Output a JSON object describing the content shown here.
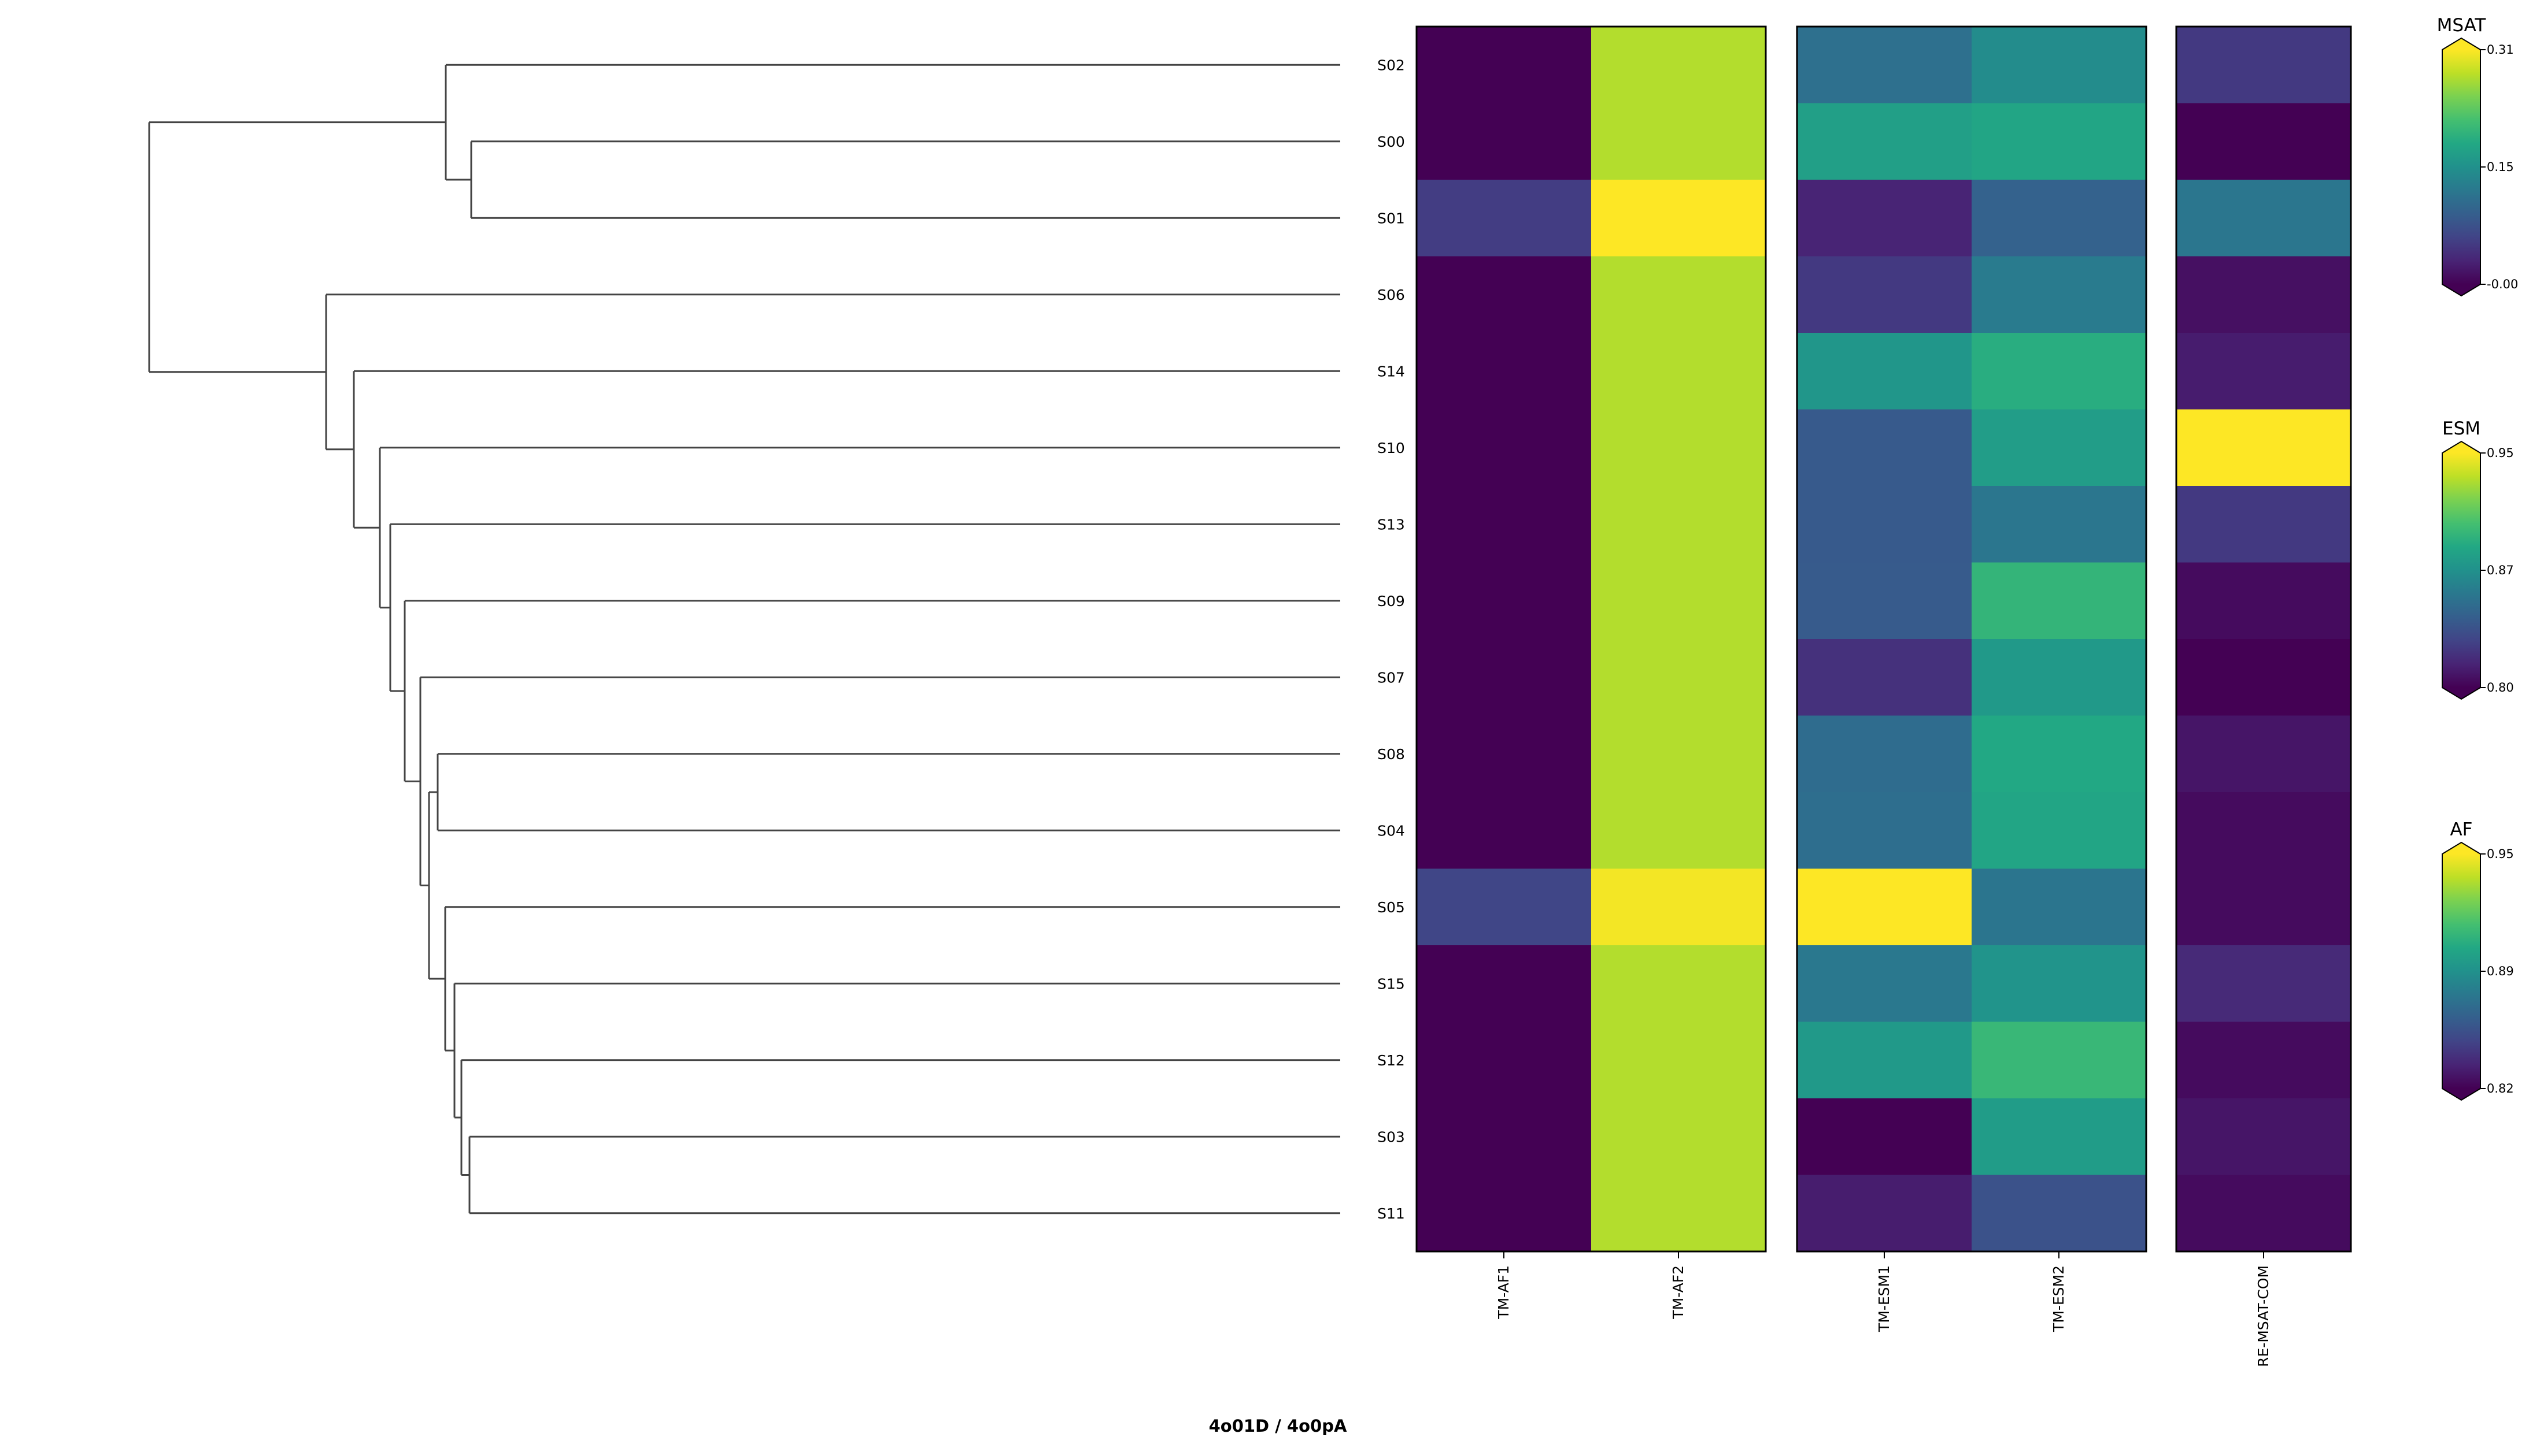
{
  "chart_data": {
    "type": "heatmap",
    "title": "4o01D / 4o0pA",
    "rows": [
      "S02",
      "S00",
      "S01",
      "S06",
      "S14",
      "S10",
      "S13",
      "S09",
      "S07",
      "S08",
      "S04",
      "S05",
      "S15",
      "S12",
      "S03",
      "S11"
    ],
    "dendrogram": "hierarchical clustering tree on the left, leaves ordered top to bottom as rows",
    "groups": [
      {
        "name": "AF",
        "columns": [
          "TM-AF1",
          "TM-AF2"
        ],
        "colormap": "viridis",
        "range": [
          0.82,
          0.95
        ],
        "colorbar_ticks": [
          "0.82",
          "0.89",
          "0.95"
        ],
        "values": [
          [
            0.82,
            0.935
          ],
          [
            0.82,
            0.935
          ],
          [
            0.843,
            0.953
          ],
          [
            0.82,
            0.935
          ],
          [
            0.82,
            0.935
          ],
          [
            0.82,
            0.935
          ],
          [
            0.82,
            0.935
          ],
          [
            0.82,
            0.935
          ],
          [
            0.82,
            0.935
          ],
          [
            0.82,
            0.935
          ],
          [
            0.82,
            0.935
          ],
          [
            0.847,
            0.948
          ],
          [
            0.82,
            0.935
          ],
          [
            0.82,
            0.935
          ],
          [
            0.82,
            0.935
          ],
          [
            0.82,
            0.935
          ]
        ]
      },
      {
        "name": "ESM",
        "columns": [
          "TM-ESM1",
          "TM-ESM2"
        ],
        "colormap": "viridis",
        "range": [
          0.8,
          0.95
        ],
        "colorbar_ticks": [
          "0.80",
          "0.87",
          "0.95"
        ],
        "values": [
          [
            0.855,
            0.872
          ],
          [
            0.884,
            0.888
          ],
          [
            0.815,
            0.847
          ],
          [
            0.825,
            0.862
          ],
          [
            0.878,
            0.893
          ],
          [
            0.842,
            0.883
          ],
          [
            0.842,
            0.859
          ],
          [
            0.843,
            0.898
          ],
          [
            0.821,
            0.88
          ],
          [
            0.853,
            0.89
          ],
          [
            0.854,
            0.888
          ],
          [
            0.955,
            0.858
          ],
          [
            0.86,
            0.877
          ],
          [
            0.88,
            0.9
          ],
          [
            0.8,
            0.882
          ],
          [
            0.812,
            0.838
          ]
        ]
      },
      {
        "name": "MSAT",
        "columns": [
          "RE-MSAT-COM"
        ],
        "colormap": "viridis",
        "range": [
          0.0,
          0.31
        ],
        "colorbar_ticks": [
          "-0.00",
          "0.15",
          "0.31"
        ],
        "values": [
          [
            0.051
          ],
          [
            0.0
          ],
          [
            0.121
          ],
          [
            0.013
          ],
          [
            0.024
          ],
          [
            0.315
          ],
          [
            0.051
          ],
          [
            0.009
          ],
          [
            0.0
          ],
          [
            0.018
          ],
          [
            0.009
          ],
          [
            0.009
          ],
          [
            0.037
          ],
          [
            0.009
          ],
          [
            0.018
          ],
          [
            0.009
          ]
        ]
      }
    ]
  }
}
